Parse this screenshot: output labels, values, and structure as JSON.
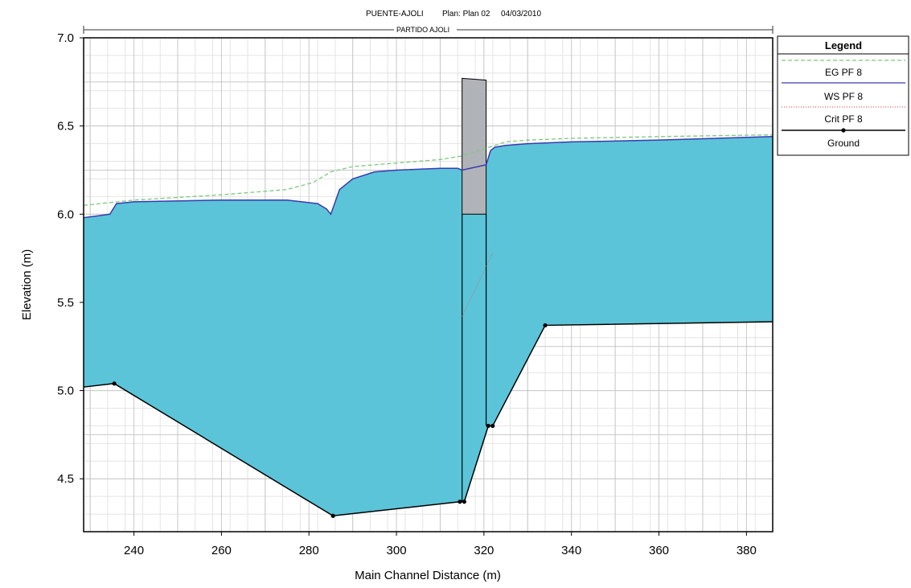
{
  "header": {
    "title": "PUENTE-AJOLI",
    "plan": "Plan: Plan 02",
    "date": "04/03/2010",
    "reach_label": "PARTIDO AJOLI"
  },
  "legend": {
    "title": "Legend",
    "items": [
      {
        "label": "EG  PF 8",
        "color": "#7fc87f",
        "style": "dashed"
      },
      {
        "label": "WS  PF 8",
        "color": "#3a3ab0",
        "style": "solid"
      },
      {
        "label": "Crit  PF 8",
        "color": "#e06060",
        "style": "dotted"
      },
      {
        "label": "Ground",
        "color": "#000000",
        "style": "solid-marker"
      }
    ]
  },
  "colors": {
    "water_fill": "#5bc4d8",
    "bridge_fill": "#b0b3b8",
    "grid_major": "#c8c8c8",
    "grid_minor": "#e4e4e4"
  },
  "chart_data": {
    "type": "area",
    "xlabel": "Main Channel Distance (m)",
    "ylabel": "Elevation (m)",
    "xlim": [
      228.5,
      386
    ],
    "ylim": [
      4.2,
      7.0
    ],
    "xticks": [
      240,
      260,
      280,
      300,
      320,
      340,
      360,
      380
    ],
    "yticks": [
      4.5,
      5.0,
      5.5,
      6.0,
      6.5,
      7.0
    ],
    "grid": true,
    "legend_position": "right",
    "series": [
      {
        "name": "EG  PF 8",
        "x": [
          228.5,
          240,
          260,
          275,
          281,
          285,
          290,
          300,
          310,
          315,
          320,
          325,
          330,
          340,
          360,
          386
        ],
        "y": [
          6.05,
          6.08,
          6.11,
          6.14,
          6.18,
          6.24,
          6.27,
          6.29,
          6.31,
          6.33,
          6.37,
          6.41,
          6.42,
          6.43,
          6.44,
          6.45
        ]
      },
      {
        "name": "WS  PF 8",
        "x": [
          228.5,
          234.5,
          236,
          240,
          260,
          275,
          282,
          284,
          285,
          287,
          290,
          295,
          300,
          310,
          314,
          315,
          320.5,
          321.5,
          322.5,
          325,
          330,
          340,
          360,
          386
        ],
        "y": [
          5.98,
          6.0,
          6.06,
          6.07,
          6.08,
          6.08,
          6.06,
          6.03,
          6.0,
          6.14,
          6.2,
          6.24,
          6.25,
          6.26,
          6.26,
          6.25,
          6.28,
          6.36,
          6.38,
          6.39,
          6.4,
          6.41,
          6.42,
          6.44
        ]
      },
      {
        "name": "Crit  PF 8",
        "x": [
          315,
          322
        ],
        "y": [
          5.42,
          5.78
        ]
      },
      {
        "name": "Ground",
        "x": [
          228.5,
          235.5,
          285.5,
          314.5,
          315.5,
          321,
          322,
          334,
          386
        ],
        "y": [
          5.02,
          5.04,
          4.29,
          4.37,
          4.37,
          4.8,
          4.8,
          5.37,
          5.39
        ]
      }
    ],
    "bridge": {
      "x_left": 315,
      "x_right": 320.5,
      "deck_top_left": 6.77,
      "deck_top_right": 6.76,
      "low_chord": 6.0
    }
  }
}
